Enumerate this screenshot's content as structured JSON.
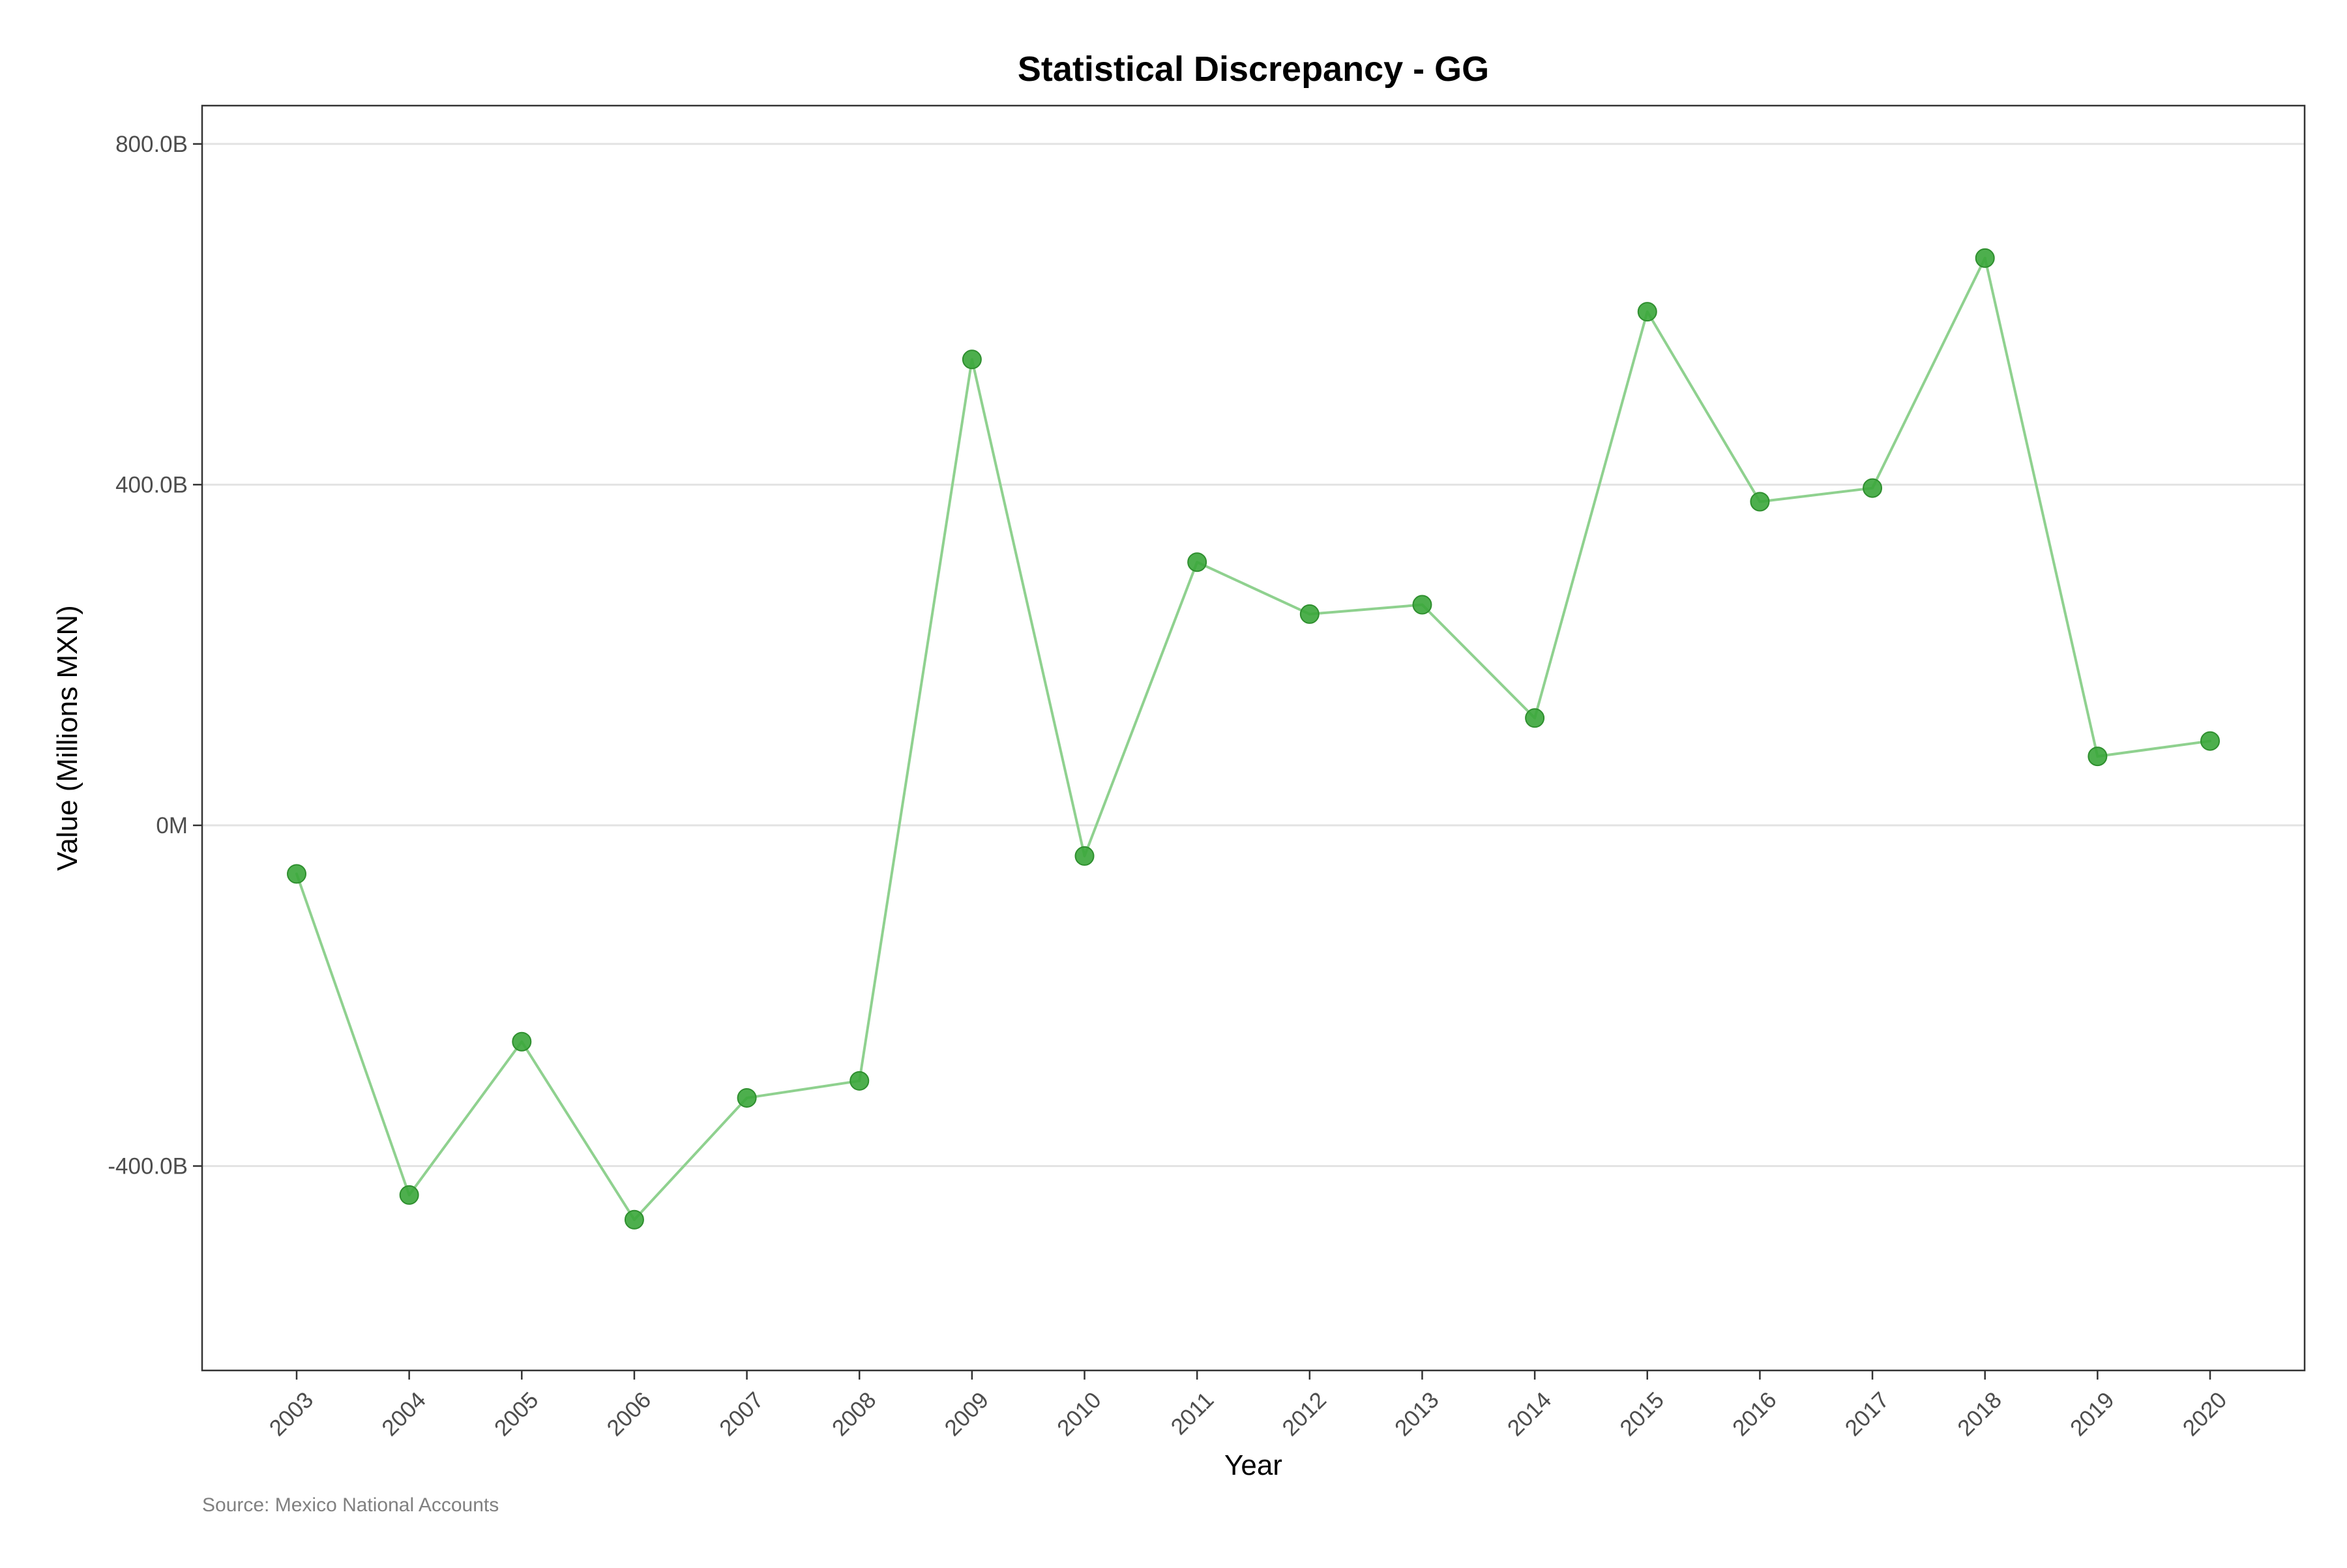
{
  "chart_data": {
    "type": "line",
    "title": "Statistical Discrepancy - GG",
    "xlabel": "Year",
    "ylabel": "Value (Millions MXN)",
    "caption": "Source: Mexico National Accounts",
    "ylim": [
      -640000,
      845000
    ],
    "y_ticks": [
      {
        "value": 800000,
        "label": "800.0B"
      },
      {
        "value": 400000,
        "label": "400.0B"
      },
      {
        "value": 0,
        "label": "0M"
      },
      {
        "value": -400000,
        "label": "-400.0B"
      }
    ],
    "grid": {
      "horizontal": true,
      "vertical": false
    },
    "series_color": "#3aa63a",
    "line_color": "#8fd18f",
    "x": [
      "2003",
      "2004",
      "2005",
      "2006",
      "2007",
      "2008",
      "2009",
      "2010",
      "2011",
      "2012",
      "2013",
      "2014",
      "2015",
      "2016",
      "2017",
      "2018",
      "2019",
      "2020"
    ],
    "series": [
      {
        "values": [
          -57000,
          -434000,
          -254000,
          -463000,
          -320000,
          -300000,
          547000,
          -36000,
          309000,
          248000,
          259000,
          126000,
          603000,
          380000,
          396000,
          666000,
          81000,
          99000
        ]
      }
    ]
  }
}
